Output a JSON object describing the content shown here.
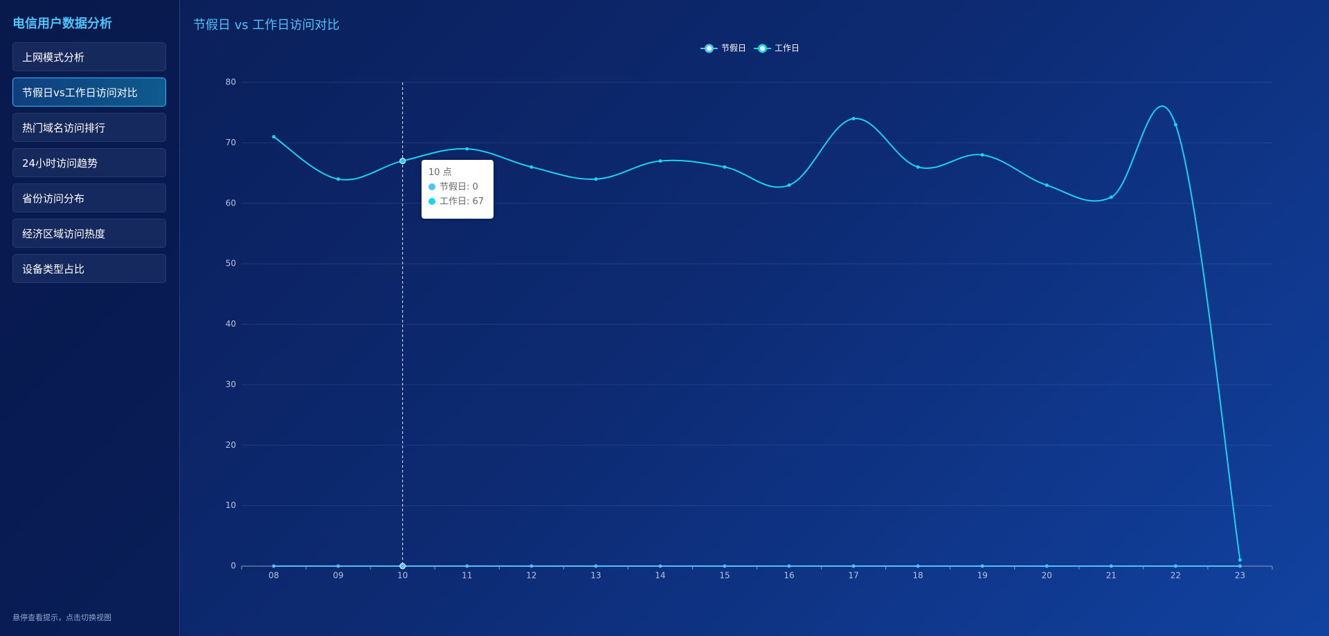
{
  "sidebar": {
    "title": "电信用户数据分析",
    "menu": [
      "上网模式分析",
      "节假日vs工作日访问对比",
      "热门域名访问排行",
      "24小时访问趋势",
      "省份访问分布",
      "经济区域访问热度",
      "设备类型占比"
    ],
    "active": 1,
    "footer": "悬停查看提示，点击切换视图"
  },
  "chart_data": {
    "type": "line",
    "title": "节假日 vs 工作日访问对比",
    "categories": [
      "08",
      "09",
      "10",
      "11",
      "12",
      "13",
      "14",
      "15",
      "16",
      "17",
      "18",
      "19",
      "20",
      "21",
      "22",
      "23"
    ],
    "series": [
      {
        "name": "节假日",
        "color": "#4fc3f7",
        "values": [
          0,
          0,
          0,
          0,
          0,
          0,
          0,
          0,
          0,
          0,
          0,
          0,
          0,
          0,
          0,
          0
        ]
      },
      {
        "name": "工作日",
        "color": "#1ad3ec",
        "values": [
          71,
          64,
          67,
          69,
          66,
          64,
          67,
          66,
          63,
          74,
          66,
          68,
          63,
          61,
          73,
          1
        ]
      }
    ],
    "ylim": [
      0,
      80
    ],
    "yticks": [
      0,
      10,
      20,
      30,
      40,
      50,
      60,
      70,
      80
    ],
    "grid": true,
    "smooth": true,
    "legend": "top",
    "tooltip": {
      "title": "10 点",
      "items": [
        "节假日: 0",
        "工作日: 67"
      ],
      "category": 2
    }
  }
}
